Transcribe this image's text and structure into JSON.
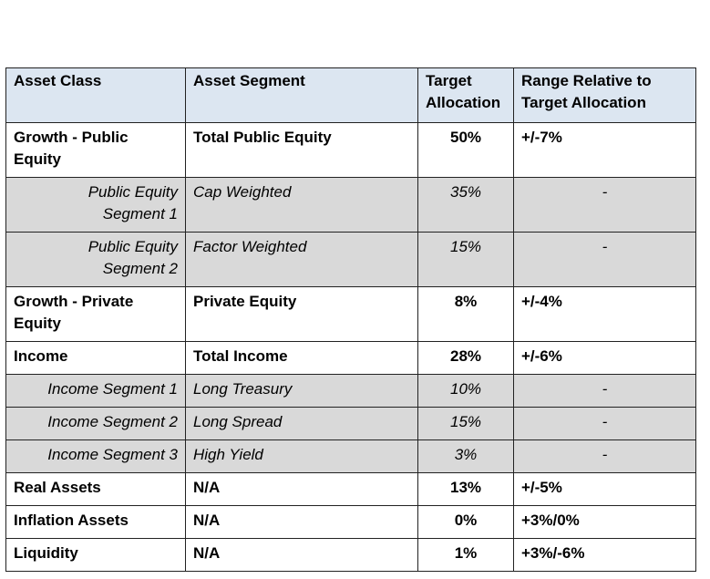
{
  "headers": {
    "asset_class": "Asset Class",
    "asset_segment": "Asset Segment",
    "target_line1": "Target",
    "target_line2": "Allocation",
    "range_line1": "Range Relative to",
    "range_line2": "Target Allocation"
  },
  "rows": [
    {
      "type": "main",
      "class_line1": "Growth - Public",
      "class_line2": "Equity",
      "segment": "Total Public Equity",
      "target": "50%",
      "range": "+/-7%"
    },
    {
      "type": "sub",
      "class_line1": "Public Equity",
      "class_line2": "Segment 1",
      "segment": "Cap Weighted",
      "target": "35%",
      "range": "-"
    },
    {
      "type": "sub",
      "class_line1": "Public Equity",
      "class_line2": "Segment 2",
      "segment": "Factor Weighted",
      "target": "15%",
      "range": "-"
    },
    {
      "type": "main",
      "class_line1": "Growth - Private",
      "class_line2": "Equity",
      "segment": "Private Equity",
      "target": "8%",
      "range": "+/-4%"
    },
    {
      "type": "main",
      "class_line1": "Income",
      "segment": "Total Income",
      "target": "28%",
      "range": "+/-6%"
    },
    {
      "type": "sub",
      "class_line1": "Income Segment 1",
      "segment": "Long Treasury",
      "target": "10%",
      "range": "-"
    },
    {
      "type": "sub",
      "class_line1": "Income Segment 2",
      "segment": "Long Spread",
      "target": "15%",
      "range": "-"
    },
    {
      "type": "sub",
      "class_line1": "Income Segment 3",
      "segment": "High Yield",
      "target": "3%",
      "range": "-"
    },
    {
      "type": "main",
      "class_line1": "Real Assets",
      "segment": "N/A",
      "target": "13%",
      "range": "+/-5%"
    },
    {
      "type": "main",
      "class_line1": "Inflation Assets",
      "segment": "N/A",
      "target": "0%",
      "range": "+3%/0%"
    },
    {
      "type": "main",
      "class_line1": "Liquidity",
      "segment": "N/A",
      "target": "1%",
      "range": "+3%/-6%"
    }
  ]
}
